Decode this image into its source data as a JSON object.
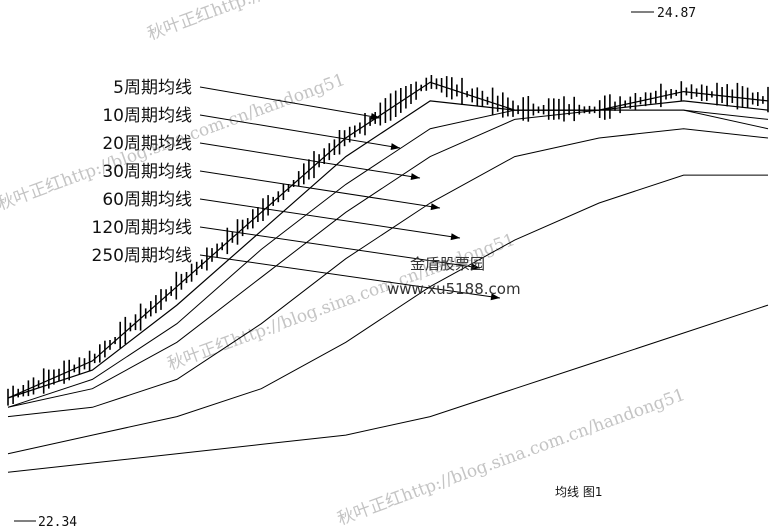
{
  "chart_data": {
    "type": "candlestick",
    "title": "",
    "caption": "均线 图1",
    "price_high_label": "24.87",
    "price_low_label": "22.34",
    "ma_labels": [
      "5周期均线",
      "10周期均线",
      "20周期均线",
      "30周期均线",
      "60周期均线",
      "120周期均线",
      "250周期均线"
    ],
    "series": [
      {
        "name": "5周期均线",
        "values": [
          22.9,
          23.1,
          23.5,
          23.9,
          24.3,
          24.6,
          24.45,
          24.45,
          24.55,
          24.5
        ]
      },
      {
        "name": "10周期均线",
        "values": [
          22.9,
          23.05,
          23.4,
          23.8,
          24.2,
          24.5,
          24.45,
          24.45,
          24.5,
          24.45
        ]
      },
      {
        "name": "20周期均线",
        "values": [
          22.85,
          23.0,
          23.3,
          23.7,
          24.05,
          24.35,
          24.45,
          24.45,
          24.45,
          24.4
        ]
      },
      {
        "name": "30周期均线",
        "values": [
          22.85,
          22.95,
          23.2,
          23.55,
          23.9,
          24.2,
          24.4,
          24.45,
          24.45,
          24.35
        ]
      },
      {
        "name": "60周期均线",
        "values": [
          22.8,
          22.85,
          23.0,
          23.3,
          23.65,
          23.95,
          24.2,
          24.3,
          24.35,
          24.3
        ]
      },
      {
        "name": "120周期均线",
        "values": [
          22.6,
          22.7,
          22.8,
          22.95,
          23.2,
          23.5,
          23.75,
          23.95,
          24.1,
          24.1
        ]
      },
      {
        "name": "250周期均线",
        "values": [
          22.5,
          22.55,
          22.6,
          22.65,
          22.7,
          22.8,
          22.95,
          23.1,
          23.25,
          23.4
        ]
      }
    ]
  },
  "watermarks": {
    "blog": "秋叶正红http://blog.sina.com.cn/handong51",
    "site_name": "金盾股票园",
    "site_url": "www.xu5188.com"
  }
}
